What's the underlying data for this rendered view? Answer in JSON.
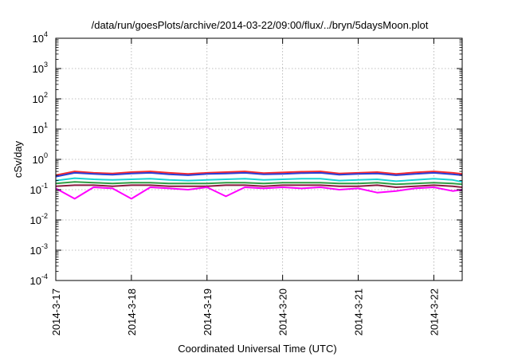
{
  "chart_data": {
    "type": "line",
    "title": "/data/run/goesPlots/archive/2014-03-22/09:00/flux/../bryn/5daysMoon.plot",
    "xlabel": "Coordinated Universal Time (UTC)",
    "ylabel": "cSv/day",
    "yscale": "log",
    "ylim": [
      0.0001,
      10000
    ],
    "xlim": [
      "2014-03-17",
      "2014-03-22 09:00"
    ],
    "grid": true,
    "legend": "none",
    "x_ticks": [
      "2014-3-17",
      "2014-3-18",
      "2014-3-19",
      "2014-3-20",
      "2014-3-21",
      "2014-3-22"
    ],
    "y_ticks": [
      {
        "base": "10",
        "exp": "-4"
      },
      {
        "base": "10",
        "exp": "-3"
      },
      {
        "base": "10",
        "exp": "-2"
      },
      {
        "base": "10",
        "exp": "-1"
      },
      {
        "base": "10",
        "exp": "0"
      },
      {
        "base": "10",
        "exp": "1"
      },
      {
        "base": "10",
        "exp": "2"
      },
      {
        "base": "10",
        "exp": "3"
      },
      {
        "base": "10",
        "exp": "4"
      }
    ],
    "x": [
      "2014-03-17 00:00",
      "2014-03-17 06:00",
      "2014-03-17 12:00",
      "2014-03-17 18:00",
      "2014-03-18 00:00",
      "2014-03-18 06:00",
      "2014-03-18 12:00",
      "2014-03-18 18:00",
      "2014-03-19 00:00",
      "2014-03-19 06:00",
      "2014-03-19 12:00",
      "2014-03-19 18:00",
      "2014-03-20 00:00",
      "2014-03-20 06:00",
      "2014-03-20 12:00",
      "2014-03-20 18:00",
      "2014-03-21 00:00",
      "2014-03-21 06:00",
      "2014-03-21 12:00",
      "2014-03-21 18:00",
      "2014-03-22 00:00",
      "2014-03-22 06:00",
      "2014-03-22 09:00"
    ],
    "series": [
      {
        "color": "#ff2a2a",
        "values": [
          0.3,
          0.4,
          0.36,
          0.34,
          0.38,
          0.4,
          0.36,
          0.33,
          0.36,
          0.38,
          0.4,
          0.35,
          0.37,
          0.39,
          0.4,
          0.34,
          0.36,
          0.38,
          0.33,
          0.37,
          0.4,
          0.36,
          0.33
        ]
      },
      {
        "color": "#2b3fd6",
        "values": [
          0.27,
          0.36,
          0.33,
          0.31,
          0.34,
          0.36,
          0.32,
          0.3,
          0.33,
          0.34,
          0.36,
          0.32,
          0.33,
          0.35,
          0.36,
          0.31,
          0.33,
          0.34,
          0.3,
          0.33,
          0.36,
          0.32,
          0.3
        ]
      },
      {
        "color": "#18d3d3",
        "values": [
          0.2,
          0.24,
          0.22,
          0.21,
          0.22,
          0.23,
          0.21,
          0.2,
          0.21,
          0.22,
          0.23,
          0.21,
          0.22,
          0.23,
          0.23,
          0.2,
          0.21,
          0.22,
          0.19,
          0.21,
          0.23,
          0.21,
          0.18
        ]
      },
      {
        "color": "#2f9e44",
        "values": [
          0.16,
          0.18,
          0.17,
          0.16,
          0.17,
          0.17,
          0.16,
          0.16,
          0.16,
          0.17,
          0.17,
          0.16,
          0.17,
          0.17,
          0.17,
          0.16,
          0.16,
          0.17,
          0.15,
          0.16,
          0.17,
          0.16,
          0.15
        ]
      },
      {
        "color": "#8a1a3f",
        "values": [
          0.13,
          0.14,
          0.14,
          0.13,
          0.14,
          0.14,
          0.13,
          0.13,
          0.13,
          0.14,
          0.14,
          0.13,
          0.14,
          0.14,
          0.14,
          0.13,
          0.13,
          0.14,
          0.12,
          0.13,
          0.14,
          0.13,
          0.12
        ]
      },
      {
        "color": "#ff00ff",
        "values": [
          0.11,
          0.05,
          0.12,
          0.11,
          0.05,
          0.12,
          0.11,
          0.1,
          0.12,
          0.06,
          0.12,
          0.11,
          0.12,
          0.11,
          0.12,
          0.1,
          0.11,
          0.08,
          0.09,
          0.11,
          0.12,
          0.09,
          0.1
        ]
      }
    ]
  }
}
